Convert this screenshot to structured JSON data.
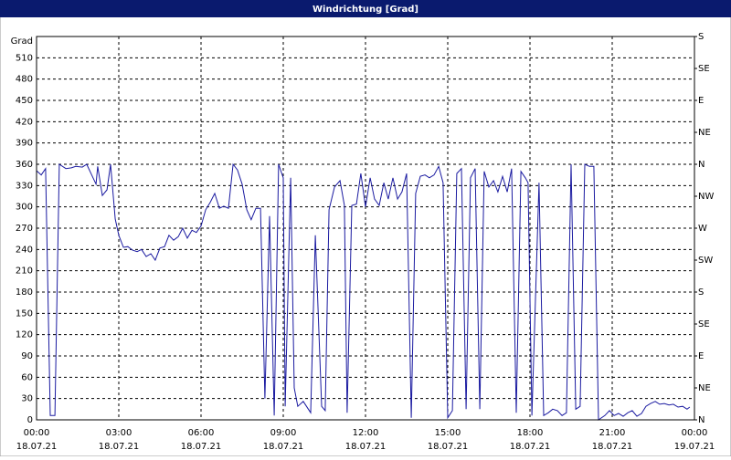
{
  "chart_data": {
    "type": "line",
    "title": "Windrichtung [Grad]",
    "y_label": "Grad",
    "color": "#1a1aa0",
    "grid": true,
    "xlim": [
      0,
      24
    ],
    "xticks": [
      {
        "value": 0,
        "label": "00:00"
      },
      {
        "value": 3,
        "label": "03:00"
      },
      {
        "value": 6,
        "label": "06:00"
      },
      {
        "value": 9,
        "label": "09:00"
      },
      {
        "value": 12,
        "label": "12:00"
      },
      {
        "value": 15,
        "label": "15:00"
      },
      {
        "value": 18,
        "label": "18:00"
      },
      {
        "value": 21,
        "label": "21:00"
      },
      {
        "value": 24,
        "label": "00:00"
      }
    ],
    "xtick_dates": [
      "18.07.21",
      "18.07.21",
      "18.07.21",
      "18.07.21",
      "18.07.21",
      "18.07.21",
      "18.07.21",
      "18.07.21",
      "19.07.21"
    ],
    "ylim": [
      0,
      540
    ],
    "yticks": [
      0,
      30,
      60,
      90,
      120,
      150,
      180,
      210,
      240,
      270,
      300,
      330,
      360,
      390,
      420,
      450,
      480,
      510
    ],
    "y2lim": [
      0,
      540
    ],
    "y2ticks": [
      {
        "value": 0,
        "label": "N"
      },
      {
        "value": 45,
        "label": "NE"
      },
      {
        "value": 90,
        "label": "E"
      },
      {
        "value": 135,
        "label": "SE"
      },
      {
        "value": 180,
        "label": "S"
      },
      {
        "value": 225,
        "label": "SW"
      },
      {
        "value": 270,
        "label": "W"
      },
      {
        "value": 315,
        "label": "NW"
      },
      {
        "value": 360,
        "label": "N"
      },
      {
        "value": 405,
        "label": "NE"
      },
      {
        "value": 450,
        "label": "E"
      },
      {
        "value": 495,
        "label": "SE"
      },
      {
        "value": 540,
        "label": "S"
      }
    ],
    "x": [
      0,
      0.17,
      0.33,
      0.5,
      0.67,
      0.83,
      1.07,
      1.27,
      1.43,
      1.67,
      1.83,
      2.0,
      2.17,
      2.23,
      2.4,
      2.57,
      2.7,
      2.87,
      3.0,
      3.17,
      3.33,
      3.5,
      3.67,
      3.83,
      4.0,
      4.17,
      4.33,
      4.5,
      4.67,
      4.83,
      5.0,
      5.17,
      5.33,
      5.5,
      5.67,
      5.83,
      6.0,
      6.17,
      6.33,
      6.5,
      6.67,
      6.83,
      7.0,
      7.17,
      7.33,
      7.5,
      7.67,
      7.83,
      8.0,
      8.17,
      8.33,
      8.5,
      8.67,
      8.83,
      9.0,
      9.07,
      9.27,
      9.4,
      9.53,
      9.73,
      10.0,
      10.17,
      10.4,
      10.53,
      10.67,
      10.87,
      11.07,
      11.23,
      11.33,
      11.5,
      11.67,
      11.83,
      12.0,
      12.17,
      12.33,
      12.5,
      12.67,
      12.83,
      13.0,
      13.17,
      13.33,
      13.5,
      13.67,
      13.83,
      14.0,
      14.17,
      14.33,
      14.5,
      14.67,
      14.83,
      15.0,
      15.17,
      15.33,
      15.5,
      15.67,
      15.83,
      16.0,
      16.17,
      16.33,
      16.5,
      16.67,
      16.83,
      17.0,
      17.17,
      17.33,
      17.5,
      17.67,
      17.83,
      17.93,
      18.07,
      18.33,
      18.5,
      18.67,
      18.83,
      19.0,
      19.17,
      19.33,
      19.5,
      19.67,
      19.83,
      20.0,
      20.17,
      20.33,
      20.5,
      20.73,
      20.9,
      21.07,
      21.23,
      21.4,
      21.57,
      21.73,
      21.9,
      22.07,
      22.23,
      22.4,
      22.57,
      22.73,
      22.9,
      23.07,
      23.23,
      23.4,
      23.57,
      23.73,
      23.83
    ],
    "values": [
      351,
      345,
      354,
      6,
      6,
      360,
      354,
      355,
      357,
      356,
      360,
      346,
      332,
      357,
      316,
      324,
      360,
      283,
      260,
      243,
      244,
      239,
      237,
      240,
      230,
      234,
      225,
      242,
      244,
      260,
      253,
      258,
      270,
      256,
      267,
      264,
      273,
      296,
      306,
      319,
      298,
      301,
      298,
      360,
      352,
      332,
      296,
      282,
      298,
      298,
      30,
      287,
      6,
      360,
      341,
      19,
      341,
      45,
      19,
      26,
      10,
      260,
      19,
      13,
      296,
      328,
      337,
      302,
      10,
      302,
      304,
      347,
      300,
      341,
      311,
      302,
      334,
      311,
      341,
      311,
      321,
      347,
      3,
      319,
      343,
      345,
      341,
      345,
      357,
      334,
      3,
      13,
      347,
      354,
      15,
      341,
      354,
      15,
      350,
      328,
      337,
      321,
      343,
      321,
      354,
      10,
      350,
      341,
      334,
      6,
      334,
      6,
      10,
      15,
      13,
      6,
      10,
      360,
      15,
      19,
      360,
      357,
      357,
      0,
      6,
      13,
      6,
      9,
      5,
      10,
      13,
      5,
      9,
      19,
      23,
      26,
      22,
      23,
      21,
      22,
      18,
      19,
      15,
      18
    ]
  }
}
